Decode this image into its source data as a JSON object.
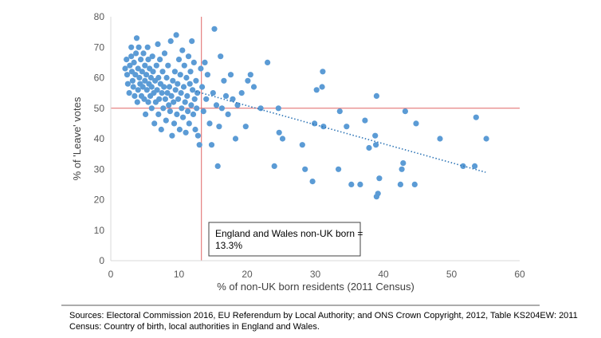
{
  "chart_data": {
    "type": "scatter",
    "title": "",
    "xlabel": "% of non-UK born residents (2011 Census)",
    "ylabel": "% of 'Leave' votes",
    "xlim": [
      0,
      60
    ],
    "ylim": [
      0,
      80
    ],
    "x_ticks": [
      0,
      10,
      20,
      30,
      40,
      50,
      60
    ],
    "y_ticks": [
      0,
      10,
      20,
      30,
      40,
      50,
      60,
      70,
      80
    ],
    "grid": false,
    "legend": "none",
    "colors": {
      "points": "#5b9bd5",
      "reference_lines": "#e06666",
      "trendline": "#2e75b6"
    },
    "reference_lines": {
      "vertical_x": 13.3,
      "horizontal_y": 50
    },
    "trendline": {
      "style": "dotted",
      "x": [
        12.5,
        55
      ],
      "y": [
        55.5,
        29
      ]
    },
    "callout": [
      "England and Wales non-UK born =",
      "13.3%"
    ],
    "series": [
      {
        "points": [
          [
            2.1,
            63
          ],
          [
            2.3,
            66
          ],
          [
            2.4,
            61
          ],
          [
            2.5,
            58
          ],
          [
            2.7,
            55
          ],
          [
            2.8,
            64
          ],
          [
            3.0,
            67
          ],
          [
            3.0,
            70
          ],
          [
            3.1,
            62
          ],
          [
            3.2,
            59
          ],
          [
            3.3,
            57
          ],
          [
            3.4,
            65
          ],
          [
            3.5,
            54
          ],
          [
            3.6,
            61
          ],
          [
            3.7,
            68
          ],
          [
            3.8,
            73
          ],
          [
            3.9,
            52
          ],
          [
            4.0,
            56
          ],
          [
            4.0,
            63
          ],
          [
            4.1,
            70
          ],
          [
            4.2,
            60
          ],
          [
            4.3,
            58
          ],
          [
            4.4,
            66
          ],
          [
            4.5,
            54
          ],
          [
            4.6,
            62
          ],
          [
            4.7,
            57
          ],
          [
            4.8,
            68
          ],
          [
            4.9,
            53
          ],
          [
            5.0,
            59
          ],
          [
            5.0,
            64
          ],
          [
            5.1,
            48
          ],
          [
            5.2,
            61
          ],
          [
            5.3,
            56
          ],
          [
            5.4,
            70
          ],
          [
            5.5,
            52
          ],
          [
            5.5,
            66
          ],
          [
            5.6,
            58
          ],
          [
            5.7,
            63
          ],
          [
            5.8,
            54
          ],
          [
            5.9,
            60
          ],
          [
            6.0,
            50
          ],
          [
            6.0,
            57
          ],
          [
            6.1,
            67
          ],
          [
            6.2,
            62
          ],
          [
            6.3,
            55
          ],
          [
            6.4,
            45
          ],
          [
            6.5,
            59
          ],
          [
            6.6,
            52
          ],
          [
            6.7,
            64
          ],
          [
            6.8,
            56
          ],
          [
            6.9,
            71
          ],
          [
            7.0,
            48
          ],
          [
            7.0,
            60
          ],
          [
            7.1,
            53
          ],
          [
            7.2,
            66
          ],
          [
            7.3,
            58
          ],
          [
            7.4,
            43
          ],
          [
            7.5,
            55
          ],
          [
            7.6,
            62
          ],
          [
            7.7,
            50
          ],
          [
            7.8,
            57
          ],
          [
            7.9,
            68
          ],
          [
            8.0,
            53
          ],
          [
            8.1,
            46
          ],
          [
            8.2,
            60
          ],
          [
            8.3,
            55
          ],
          [
            8.4,
            64
          ],
          [
            8.5,
            51
          ],
          [
            8.6,
            57
          ],
          [
            8.7,
            49
          ],
          [
            8.8,
            72
          ],
          [
            8.9,
            54
          ],
          [
            9.0,
            41
          ],
          [
            9.1,
            59
          ],
          [
            9.2,
            52
          ],
          [
            9.3,
            45
          ],
          [
            9.4,
            62
          ],
          [
            9.5,
            56
          ],
          [
            9.6,
            74
          ],
          [
            9.7,
            48
          ],
          [
            9.8,
            58
          ],
          [
            9.9,
            53
          ],
          [
            10.0,
            66
          ],
          [
            10.1,
            43
          ],
          [
            10.2,
            61
          ],
          [
            10.3,
            55
          ],
          [
            10.4,
            50
          ],
          [
            10.5,
            69
          ],
          [
            10.6,
            47
          ],
          [
            10.7,
            57
          ],
          [
            10.8,
            64
          ],
          [
            10.9,
            52
          ],
          [
            11.0,
            42
          ],
          [
            11.1,
            60
          ],
          [
            11.2,
            54
          ],
          [
            11.3,
            49
          ],
          [
            11.4,
            67
          ],
          [
            11.5,
            45
          ],
          [
            11.6,
            58
          ],
          [
            11.7,
            62
          ],
          [
            11.8,
            51
          ],
          [
            11.9,
            72
          ],
          [
            12.0,
            56
          ],
          [
            12.1,
            48
          ],
          [
            12.2,
            65
          ],
          [
            12.3,
            53
          ],
          [
            12.4,
            43
          ],
          [
            12.5,
            59
          ],
          [
            12.6,
            50
          ],
          [
            12.7,
            55
          ],
          [
            12.8,
            41
          ],
          [
            13.0,
            38
          ],
          [
            13.2,
            63
          ],
          [
            13.4,
            57
          ],
          [
            13.6,
            49
          ],
          [
            13.8,
            65
          ],
          [
            14.0,
            53
          ],
          [
            14.2,
            61
          ],
          [
            14.5,
            45
          ],
          [
            14.8,
            38
          ],
          [
            15.0,
            55
          ],
          [
            15.2,
            76
          ],
          [
            15.5,
            51
          ],
          [
            15.7,
            31
          ],
          [
            15.9,
            44
          ],
          [
            16.1,
            67
          ],
          [
            16.3,
            50
          ],
          [
            16.6,
            59
          ],
          [
            16.9,
            54
          ],
          [
            17.2,
            48
          ],
          [
            17.6,
            61
          ],
          [
            17.9,
            53
          ],
          [
            18.3,
            40
          ],
          [
            18.6,
            51
          ],
          [
            19.2,
            55
          ],
          [
            19.8,
            44
          ],
          [
            20.1,
            59
          ],
          [
            20.5,
            61
          ],
          [
            21.0,
            57
          ],
          [
            22.0,
            50
          ],
          [
            23.0,
            65
          ],
          [
            24.0,
            31
          ],
          [
            24.6,
            50
          ],
          [
            24.7,
            42
          ],
          [
            25.2,
            40
          ],
          [
            28.1,
            38
          ],
          [
            28.5,
            30
          ],
          [
            29.6,
            26
          ],
          [
            29.9,
            45
          ],
          [
            30.2,
            56
          ],
          [
            31.0,
            57
          ],
          [
            31.1,
            62
          ],
          [
            31.2,
            44
          ],
          [
            33.4,
            30
          ],
          [
            33.6,
            49
          ],
          [
            34.6,
            44
          ],
          [
            35.3,
            25
          ],
          [
            36.6,
            25
          ],
          [
            37.3,
            46
          ],
          [
            37.9,
            37
          ],
          [
            38.8,
            41
          ],
          [
            38.9,
            38
          ],
          [
            39.0,
            21
          ],
          [
            39.0,
            54
          ],
          [
            39.2,
            22
          ],
          [
            39.4,
            27
          ],
          [
            42.5,
            25
          ],
          [
            42.7,
            30
          ],
          [
            42.9,
            32
          ],
          [
            43.2,
            49
          ],
          [
            44.6,
            25
          ],
          [
            44.8,
            45
          ],
          [
            48.3,
            40
          ],
          [
            51.7,
            31
          ],
          [
            53.4,
            31
          ],
          [
            53.6,
            47
          ],
          [
            55.1,
            40
          ]
        ]
      }
    ]
  },
  "source_note": [
    "Sources: Electoral Commission 2016, EU Referendum by Local Authority; and ONS Crown Copyright, 2012, Table KS204EW: 2011",
    "Census: Country of birth, local authorities in England and Wales."
  ]
}
